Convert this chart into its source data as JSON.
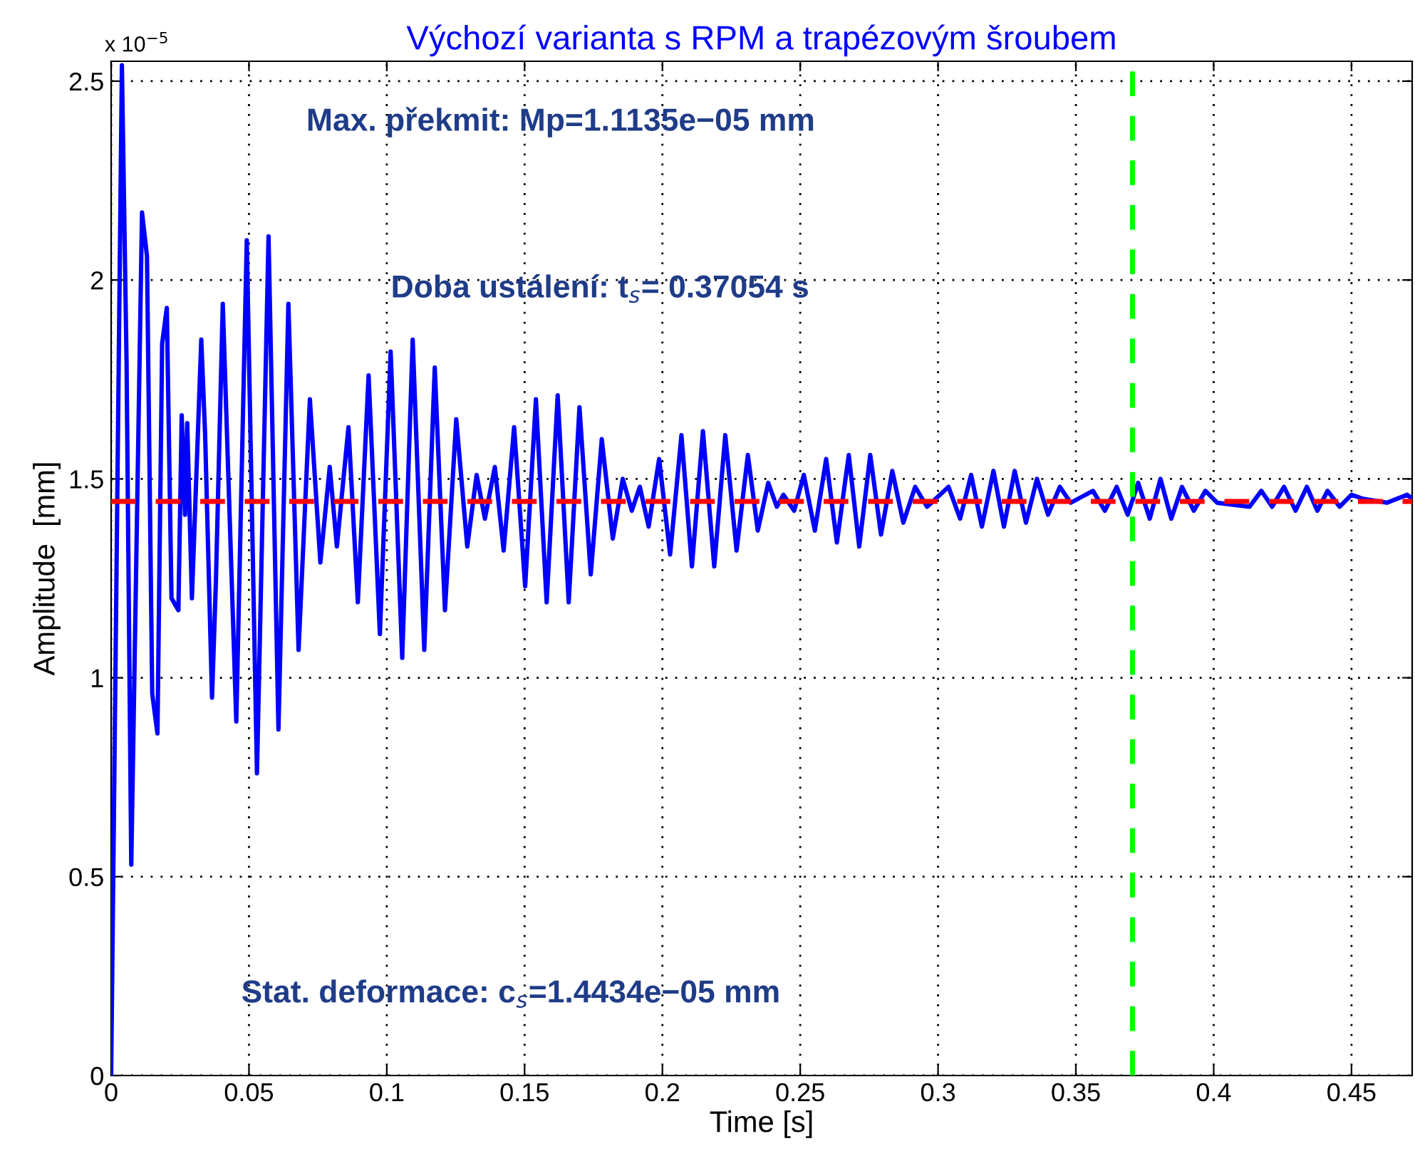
{
  "chart_data": {
    "type": "line",
    "title": "Výchozí varianta s RPM a trapézovým šroubem",
    "xlabel": "Time [s]",
    "ylabel": "Amplitude  [mm]",
    "annotations": [
      "x 10$^{−5}$",
      "Max. překmit: Mp=1.1135e−05 mm",
      "Doba ustálení: t$_{s}$= 0.37054 s",
      "Stat. deformace: c$_{s}$=1.4434e−05 mm"
    ],
    "series": [
      {
        "color": "#0000ff",
        "x": [
          0,
          0.0039,
          0.0056,
          0.0073,
          0.0112,
          0.013,
          0.0149,
          0.0168,
          0.0185,
          0.0202,
          0.0219,
          0.0244,
          0.0256,
          0.0268,
          0.0276,
          0.0293,
          0.0327,
          0.0341,
          0.0366,
          0.038,
          0.0405,
          0.0454,
          0.0492,
          0.0529,
          0.0571,
          0.0607,
          0.0643,
          0.068,
          0.0721,
          0.0759,
          0.0793,
          0.0819,
          0.0861,
          0.0895,
          0.0934,
          0.0975,
          0.1014,
          0.1056,
          0.1094,
          0.1136,
          0.1174,
          0.1211,
          0.1252,
          0.1292,
          0.1326,
          0.1356,
          0.1392,
          0.1424,
          0.1462,
          0.1502,
          0.1541,
          0.158,
          0.162,
          0.166,
          0.1699,
          0.174,
          0.178,
          0.182,
          0.1856,
          0.1889,
          0.1918,
          0.195,
          0.1988,
          0.2028,
          0.2069,
          0.2107,
          0.2147,
          0.2188,
          0.2228,
          0.2269,
          0.231,
          0.2346,
          0.2384,
          0.2415,
          0.2439,
          0.2478,
          0.2513,
          0.2553,
          0.2594,
          0.2633,
          0.2676,
          0.2714,
          0.2754,
          0.2793,
          0.2834,
          0.2874,
          0.2917,
          0.296,
          0.3038,
          0.308,
          0.312,
          0.3159,
          0.3201,
          0.3239,
          0.3278,
          0.3319,
          0.3359,
          0.3399,
          0.3442,
          0.3481,
          0.3562,
          0.3605,
          0.3648,
          0.3688,
          0.3726,
          0.3768,
          0.3807,
          0.3846,
          0.3885,
          0.3928,
          0.397,
          0.4013,
          0.413,
          0.4173,
          0.4212,
          0.4255,
          0.4297,
          0.4338,
          0.4376,
          0.4413,
          0.4457,
          0.45,
          0.4542,
          0.4628,
          0.4702,
          0.472
        ],
        "values": [
          0,
          2.54,
          1.79,
          0.53,
          2.17,
          2.06,
          0.96,
          0.86,
          1.84,
          1.93,
          1.2,
          1.17,
          1.66,
          1.41,
          1.64,
          1.2,
          1.85,
          1.61,
          0.95,
          1.24,
          1.94,
          0.89,
          2.1,
          0.76,
          2.11,
          0.87,
          1.94,
          1.07,
          1.7,
          1.29,
          1.53,
          1.33,
          1.63,
          1.19,
          1.76,
          1.11,
          1.82,
          1.05,
          1.85,
          1.07,
          1.78,
          1.17,
          1.65,
          1.33,
          1.51,
          1.4,
          1.53,
          1.32,
          1.63,
          1.23,
          1.7,
          1.19,
          1.71,
          1.19,
          1.68,
          1.26,
          1.6,
          1.35,
          1.5,
          1.42,
          1.48,
          1.38,
          1.55,
          1.31,
          1.61,
          1.28,
          1.62,
          1.28,
          1.61,
          1.32,
          1.56,
          1.37,
          1.49,
          1.43,
          1.46,
          1.42,
          1.51,
          1.37,
          1.55,
          1.34,
          1.56,
          1.33,
          1.56,
          1.36,
          1.52,
          1.39,
          1.48,
          1.43,
          1.48,
          1.4,
          1.51,
          1.38,
          1.52,
          1.38,
          1.52,
          1.39,
          1.5,
          1.41,
          1.48,
          1.44,
          1.47,
          1.42,
          1.48,
          1.41,
          1.49,
          1.4,
          1.5,
          1.4,
          1.48,
          1.42,
          1.47,
          1.44,
          1.43,
          1.47,
          1.43,
          1.48,
          1.42,
          1.48,
          1.42,
          1.47,
          1.43,
          1.46,
          1.45,
          1.44,
          1.46,
          1.45
        ]
      }
    ],
    "ref_lines": [
      {
        "axis": "y",
        "value": 1.4434,
        "color": "#ff0000",
        "line_style": "dashed"
      },
      {
        "axis": "x",
        "value": 0.37054,
        "color": "#00ff00",
        "line_style": "dashed"
      }
    ],
    "xlim": [
      0,
      0.472
    ],
    "ylim": [
      0,
      2.55
    ],
    "xticks": [
      0,
      0.05,
      0.1,
      0.15,
      0.2,
      0.25,
      0.3,
      0.35,
      0.4,
      0.45
    ],
    "yticks": [
      0,
      0.5,
      1,
      1.5,
      2,
      2.5
    ],
    "grid": true,
    "line_style": "solid"
  }
}
